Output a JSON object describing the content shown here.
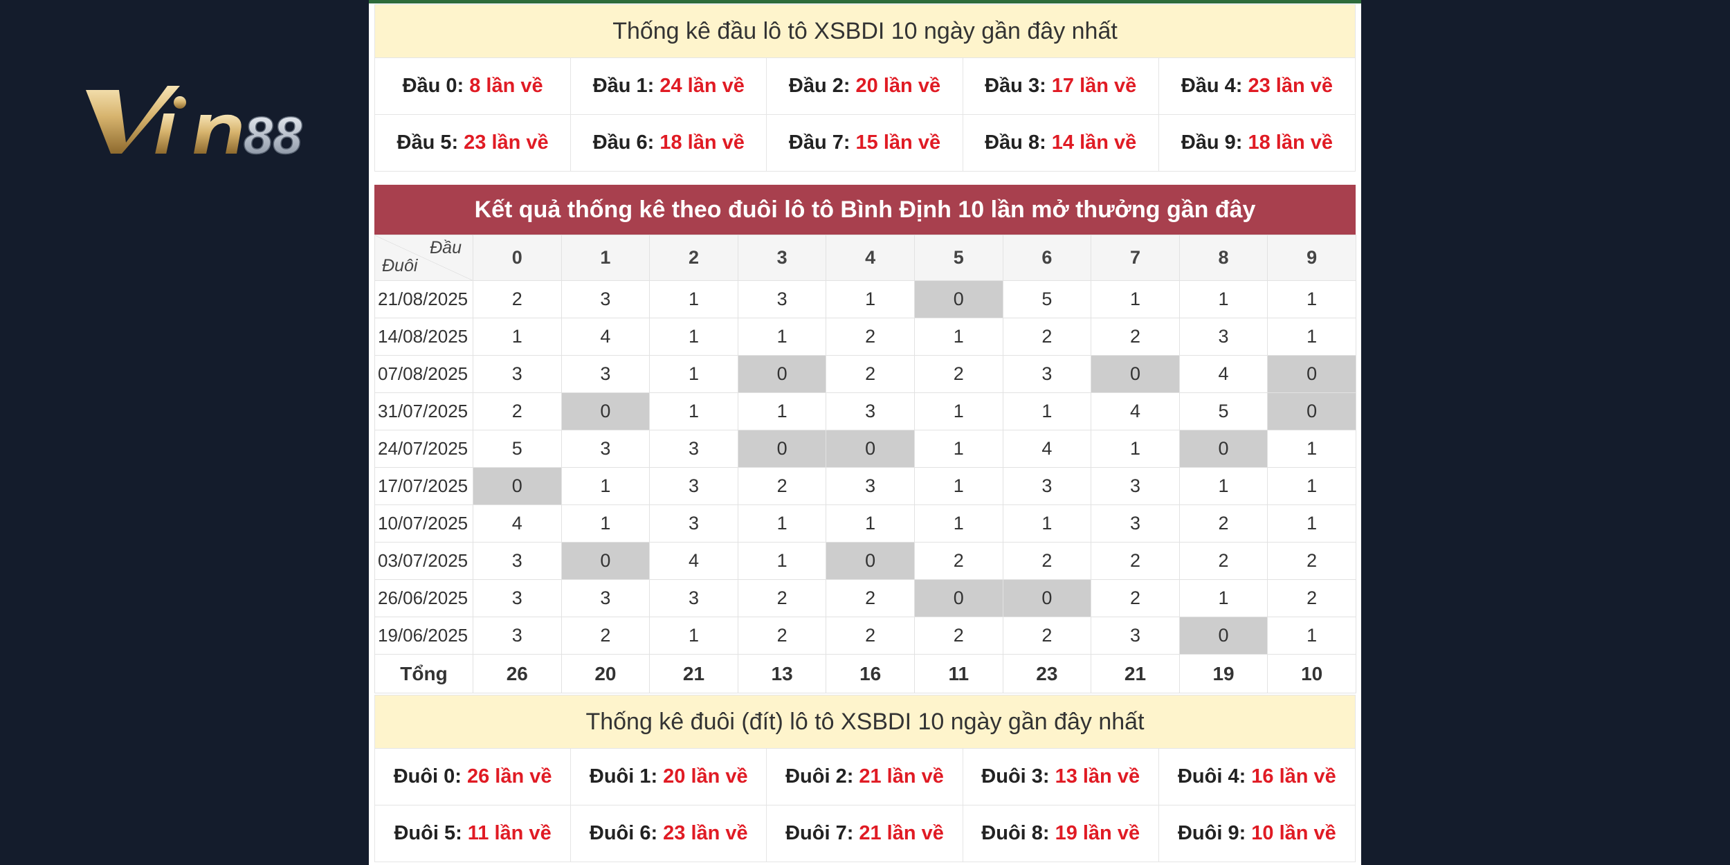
{
  "brand": {
    "logo_text": "Vin88"
  },
  "dau_section": {
    "title": "Thống kê đầu lô tô XSBDI 10 ngày gần đây nhất",
    "items": [
      {
        "label": "Đầu 0:",
        "count": "8 lần về"
      },
      {
        "label": "Đầu 1:",
        "count": "24 lần về"
      },
      {
        "label": "Đầu 2:",
        "count": "20 lần về"
      },
      {
        "label": "Đầu 3:",
        "count": "17 lần về"
      },
      {
        "label": "Đầu 4:",
        "count": "23 lần về"
      },
      {
        "label": "Đầu 5:",
        "count": "23 lần về"
      },
      {
        "label": "Đầu 6:",
        "count": "18 lần về"
      },
      {
        "label": "Đầu 7:",
        "count": "15 lần về"
      },
      {
        "label": "Đầu 8:",
        "count": "14 lần về"
      },
      {
        "label": "Đầu 9:",
        "count": "18 lần về"
      }
    ]
  },
  "table": {
    "title": "Kết quả thống kê theo đuôi lô tô Bình Định 10 lần mở thưởng gần đây",
    "corner_top": "Đầu",
    "corner_bottom": "Đuôi",
    "columns": [
      "0",
      "1",
      "2",
      "3",
      "4",
      "5",
      "6",
      "7",
      "8",
      "9"
    ],
    "rows": [
      {
        "date": "21/08/2025",
        "values": [
          "2",
          "3",
          "1",
          "3",
          "1",
          "0",
          "5",
          "1",
          "1",
          "1"
        ]
      },
      {
        "date": "14/08/2025",
        "values": [
          "1",
          "4",
          "1",
          "1",
          "2",
          "1",
          "2",
          "2",
          "3",
          "1"
        ]
      },
      {
        "date": "07/08/2025",
        "values": [
          "3",
          "3",
          "1",
          "0",
          "2",
          "2",
          "3",
          "0",
          "4",
          "0"
        ]
      },
      {
        "date": "31/07/2025",
        "values": [
          "2",
          "0",
          "1",
          "1",
          "3",
          "1",
          "1",
          "4",
          "5",
          "0"
        ]
      },
      {
        "date": "24/07/2025",
        "values": [
          "5",
          "3",
          "3",
          "0",
          "0",
          "1",
          "4",
          "1",
          "0",
          "1"
        ]
      },
      {
        "date": "17/07/2025",
        "values": [
          "0",
          "1",
          "3",
          "2",
          "3",
          "1",
          "3",
          "3",
          "1",
          "1"
        ]
      },
      {
        "date": "10/07/2025",
        "values": [
          "4",
          "1",
          "3",
          "1",
          "1",
          "1",
          "1",
          "3",
          "2",
          "1"
        ]
      },
      {
        "date": "03/07/2025",
        "values": [
          "3",
          "0",
          "4",
          "1",
          "0",
          "2",
          "2",
          "2",
          "2",
          "2"
        ]
      },
      {
        "date": "26/06/2025",
        "values": [
          "3",
          "3",
          "3",
          "2",
          "2",
          "0",
          "0",
          "2",
          "1",
          "2"
        ]
      },
      {
        "date": "19/06/2025",
        "values": [
          "3",
          "2",
          "1",
          "2",
          "2",
          "2",
          "2",
          "3",
          "0",
          "1"
        ]
      }
    ],
    "total_label": "Tổng",
    "totals": [
      "26",
      "20",
      "21",
      "13",
      "16",
      "11",
      "23",
      "21",
      "19",
      "10"
    ]
  },
  "duoi_section": {
    "title": "Thống kê đuôi (đít) lô tô XSBDI 10 ngày gần đây nhất",
    "items": [
      {
        "label": "Đuôi 0:",
        "count": "26 lần về"
      },
      {
        "label": "Đuôi 1:",
        "count": "20 lần về"
      },
      {
        "label": "Đuôi 2:",
        "count": "21 lần về"
      },
      {
        "label": "Đuôi 3:",
        "count": "13 lần về"
      },
      {
        "label": "Đuôi 4:",
        "count": "16 lần về"
      },
      {
        "label": "Đuôi 5:",
        "count": "11 lần về"
      },
      {
        "label": "Đuôi 6:",
        "count": "23 lần về"
      },
      {
        "label": "Đuôi 7:",
        "count": "21 lần về"
      },
      {
        "label": "Đuôi 8:",
        "count": "19 lần về"
      },
      {
        "label": "Đuôi 9:",
        "count": "10 lần về"
      }
    ]
  },
  "colors": {
    "page_bg": "#141c2c",
    "header_red": "#a8404e",
    "header_yellow": "#fef4cc",
    "count_red": "#e01b24",
    "zero_cell": "#cdcdcd"
  }
}
